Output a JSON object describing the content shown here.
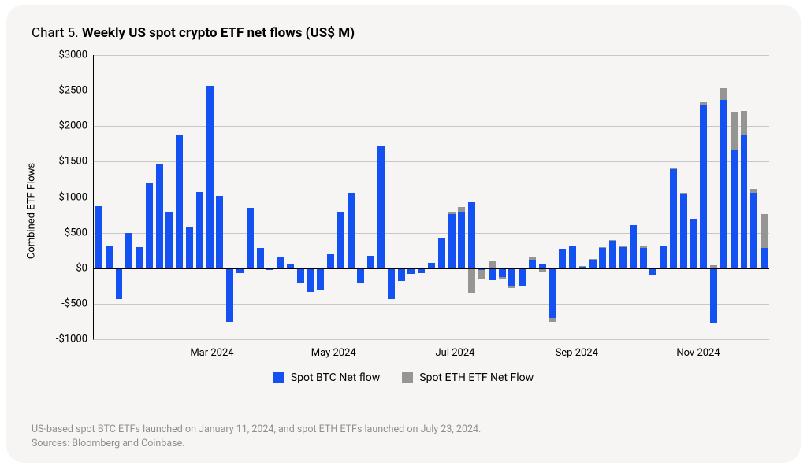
{
  "card_background": "#f6f5f4",
  "title": {
    "prefix": "Chart 5.",
    "bold": "Weekly US spot crypto ETF net flows (US$ M)"
  },
  "chart": {
    "type": "stacked-bar",
    "ylabel": "Combined ETF Flows",
    "y_min": -1000,
    "y_max": 3000,
    "y_tick_step": 500,
    "y_ticks": [
      -1000,
      -500,
      0,
      500,
      1000,
      1500,
      2000,
      2500,
      3000
    ],
    "y_tick_labels": [
      "-$1000",
      "-$500",
      "$0",
      "$500",
      "$1000",
      "$1500",
      "$2000",
      "$2500",
      "$3000"
    ],
    "grid_color": "#c9c8c6",
    "axis_color": "#000000",
    "bar_gap_ratio": 0.3,
    "background_color": "#f6f5f4",
    "series": {
      "btc": {
        "label": "Spot BTC Net flow",
        "color": "#1451f2",
        "values": [
          870,
          310,
          -440,
          500,
          300,
          1190,
          1460,
          800,
          1870,
          580,
          1070,
          2570,
          1020,
          -760,
          -70,
          850,
          280,
          -20,
          150,
          60,
          -200,
          -340,
          -310,
          200,
          780,
          1060,
          -200,
          180,
          1720,
          -440,
          -180,
          -80,
          -70,
          80,
          430,
          760,
          800,
          930,
          -20,
          -170,
          -130,
          -250,
          -260,
          120,
          60,
          -700,
          260,
          310,
          20,
          120,
          280,
          380,
          300,
          610,
          290,
          -90,
          310,
          1390,
          1050,
          700,
          2290,
          -770,
          2370,
          1670,
          1880,
          1060,
          290
        ]
      },
      "eth": {
        "label": "Spot ETH ETF Net Flow",
        "color": "#959593",
        "values": [
          0,
          0,
          0,
          0,
          0,
          0,
          0,
          0,
          0,
          0,
          0,
          0,
          0,
          0,
          0,
          0,
          0,
          0,
          0,
          0,
          0,
          0,
          0,
          0,
          0,
          0,
          0,
          0,
          0,
          0,
          0,
          0,
          0,
          0,
          0,
          20,
          60,
          -350,
          -140,
          100,
          -30,
          -30,
          0,
          30,
          -50,
          -60,
          0,
          0,
          10,
          10,
          20,
          20,
          10,
          -15,
          20,
          0,
          0,
          10,
          15,
          -15,
          55,
          40,
          170,
          530,
          330,
          60,
          470
        ]
      }
    },
    "x_ticks": [
      {
        "index": 7,
        "label": "Mar 2024"
      },
      {
        "index": 16,
        "label": "May 2024"
      },
      {
        "index": 25,
        "label": "Jul 2024"
      },
      {
        "index": 33,
        "label": "Sep 2024"
      },
      {
        "index": 42,
        "label": "Nov 2024"
      }
    ],
    "x_tick_fraction_positions": [
      0.175,
      0.355,
      0.535,
      0.715,
      0.895
    ]
  },
  "legend": {
    "items": [
      {
        "label": "Spot BTC Net flow",
        "color": "#1451f2"
      },
      {
        "label": "Spot ETH ETF Net Flow",
        "color": "#959593"
      }
    ]
  },
  "footnote": {
    "line1": "US-based spot BTC ETFs launched on January 11, 2024, and spot ETH ETFs launched on July 23, 2024.",
    "line2": "Sources: Bloomberg and Coinbase.",
    "color": "#8e8e8e"
  },
  "label_fontsize": 13,
  "title_fontsize": 17
}
